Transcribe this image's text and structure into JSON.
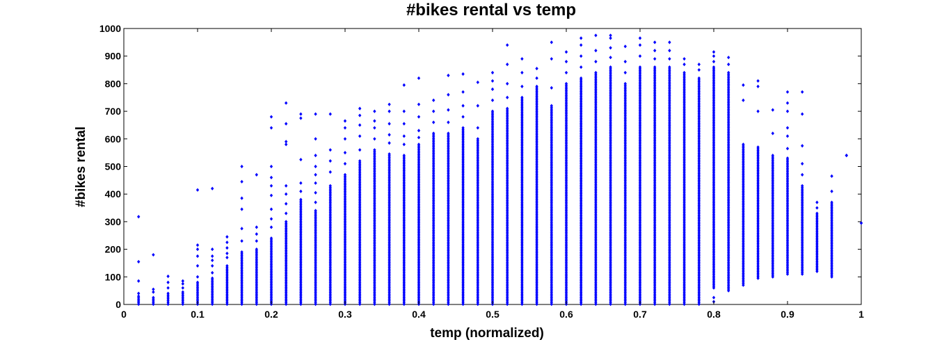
{
  "chart_data": {
    "type": "scatter",
    "title": "#bikes rental vs temp",
    "xlabel": "temp (normalized)",
    "ylabel": "#bikes rental",
    "xlim": [
      0,
      1
    ],
    "ylim": [
      0,
      1000
    ],
    "xticks": [
      "0",
      "0.1",
      "0.2",
      "0.3",
      "0.4",
      "0.5",
      "0.6",
      "0.7",
      "0.8",
      "0.9",
      "1"
    ],
    "yticks": [
      "0",
      "100",
      "200",
      "300",
      "400",
      "500",
      "600",
      "700",
      "800",
      "900",
      "1000"
    ],
    "grid": false,
    "legend": "none",
    "marker_color": "#0000ff",
    "marker": "diamond",
    "series": [
      {
        "columns": [
          {
            "x": 0.02,
            "dense_min": 1,
            "dense_max": 30,
            "outliers": [
              40,
              85,
              155,
              318
            ]
          },
          {
            "x": 0.04,
            "dense_min": 1,
            "dense_max": 25,
            "outliers": [
              45,
              55,
              180
            ]
          },
          {
            "x": 0.06,
            "dense_min": 1,
            "dense_max": 40,
            "outliers": [
              60,
              80,
              102
            ]
          },
          {
            "x": 0.08,
            "dense_min": 1,
            "dense_max": 45,
            "outliers": [
              60,
              75,
              85
            ]
          },
          {
            "x": 0.1,
            "dense_min": 1,
            "dense_max": 80,
            "outliers": [
              100,
              140,
              175,
              200,
              215,
              415
            ]
          },
          {
            "x": 0.12,
            "dense_min": 1,
            "dense_max": 95,
            "outliers": [
              115,
              140,
              160,
              175,
              200,
              420
            ]
          },
          {
            "x": 0.14,
            "dense_min": 1,
            "dense_max": 140,
            "outliers": [
              170,
              185,
              205,
              225,
              245
            ]
          },
          {
            "x": 0.16,
            "dense_min": 1,
            "dense_max": 190,
            "outliers": [
              230,
              275,
              345,
              385,
              445,
              500
            ]
          },
          {
            "x": 0.18,
            "dense_min": 1,
            "dense_max": 200,
            "outliers": [
              230,
              255,
              280,
              470
            ]
          },
          {
            "x": 0.2,
            "dense_min": 1,
            "dense_max": 240,
            "outliers": [
              280,
              310,
              345,
              395,
              430,
              460,
              500,
              640,
              680
            ]
          },
          {
            "x": 0.22,
            "dense_min": 1,
            "dense_max": 300,
            "outliers": [
              330,
              365,
              400,
              430,
              580,
              590,
              655,
              730
            ]
          },
          {
            "x": 0.24,
            "dense_min": 1,
            "dense_max": 380,
            "outliers": [
              410,
              440,
              525,
              675,
              690
            ]
          },
          {
            "x": 0.26,
            "dense_min": 1,
            "dense_max": 340,
            "outliers": [
              370,
              405,
              440,
              470,
              500,
              540,
              600,
              690
            ]
          },
          {
            "x": 0.28,
            "dense_min": 1,
            "dense_max": 430,
            "outliers": [
              480,
              520,
              560,
              690
            ]
          },
          {
            "x": 0.3,
            "dense_min": 1,
            "dense_max": 470,
            "outliers": [
              510,
              550,
              600,
              640,
              665
            ]
          },
          {
            "x": 0.32,
            "dense_min": 1,
            "dense_max": 520,
            "outliers": [
              560,
              610,
              650,
              685,
              710
            ]
          },
          {
            "x": 0.34,
            "dense_min": 1,
            "dense_max": 560,
            "outliers": [
              600,
              640,
              665,
              700
            ]
          },
          {
            "x": 0.36,
            "dense_min": 1,
            "dense_max": 545,
            "outliers": [
              585,
              615,
              655,
              700,
              725
            ]
          },
          {
            "x": 0.38,
            "dense_min": 1,
            "dense_max": 540,
            "outliers": [
              580,
              610,
              655,
              700,
              795
            ]
          },
          {
            "x": 0.4,
            "dense_min": 1,
            "dense_max": 580,
            "outliers": [
              605,
              630,
              680,
              725,
              820
            ]
          },
          {
            "x": 0.42,
            "dense_min": 1,
            "dense_max": 620,
            "outliers": [
              660,
              700,
              740
            ]
          },
          {
            "x": 0.44,
            "dense_min": 1,
            "dense_max": 620,
            "outliers": [
              660,
              705,
              760,
              830
            ]
          },
          {
            "x": 0.46,
            "dense_min": 1,
            "dense_max": 640,
            "outliers": [
              680,
              720,
              770,
              835
            ]
          },
          {
            "x": 0.48,
            "dense_min": 1,
            "dense_max": 600,
            "outliers": [
              640,
              720,
              805
            ]
          },
          {
            "x": 0.5,
            "dense_min": 1,
            "dense_max": 700,
            "outliers": [
              740,
              780,
              810,
              840
            ]
          },
          {
            "x": 0.52,
            "dense_min": 1,
            "dense_max": 710,
            "outliers": [
              750,
              800,
              870,
              940
            ]
          },
          {
            "x": 0.54,
            "dense_min": 1,
            "dense_max": 750,
            "outliers": [
              790,
              840,
              890
            ]
          },
          {
            "x": 0.56,
            "dense_min": 1,
            "dense_max": 790,
            "outliers": [
              820,
              855
            ]
          },
          {
            "x": 0.58,
            "dense_min": 1,
            "dense_max": 720,
            "outliers": [
              785,
              890,
              950
            ]
          },
          {
            "x": 0.6,
            "dense_min": 1,
            "dense_max": 800,
            "outliers": [
              840,
              880,
              915
            ]
          },
          {
            "x": 0.62,
            "dense_min": 1,
            "dense_max": 820,
            "outliers": [
              860,
              900,
              940,
              965
            ]
          },
          {
            "x": 0.64,
            "dense_min": 1,
            "dense_max": 840,
            "outliers": [
              880,
              920,
              975
            ]
          },
          {
            "x": 0.66,
            "dense_min": 1,
            "dense_max": 860,
            "outliers": [
              895,
              930,
              965,
              975
            ]
          },
          {
            "x": 0.68,
            "dense_min": 1,
            "dense_max": 800,
            "outliers": [
              840,
              880,
              935
            ]
          },
          {
            "x": 0.7,
            "dense_min": 1,
            "dense_max": 860,
            "outliers": [
              900,
              940,
              965
            ]
          },
          {
            "x": 0.72,
            "dense_min": 1,
            "dense_max": 860,
            "outliers": [
              890,
              920,
              950
            ]
          },
          {
            "x": 0.74,
            "dense_min": 1,
            "dense_max": 860,
            "outliers": [
              890,
              920,
              950
            ]
          },
          {
            "x": 0.76,
            "dense_min": 1,
            "dense_max": 840,
            "outliers": [
              870,
              890
            ]
          },
          {
            "x": 0.78,
            "dense_min": 1,
            "dense_max": 820,
            "outliers": [
              850,
              870
            ]
          },
          {
            "x": 0.8,
            "dense_min": 60,
            "dense_max": 860,
            "outliers": [
              10,
              25,
              880,
              900,
              915
            ]
          },
          {
            "x": 0.82,
            "dense_min": 50,
            "dense_max": 840,
            "outliers": [
              870,
              895
            ]
          },
          {
            "x": 0.84,
            "dense_min": 70,
            "dense_max": 580,
            "outliers": [
              740,
              795
            ]
          },
          {
            "x": 0.86,
            "dense_min": 95,
            "dense_max": 570,
            "outliers": [
              700,
              790,
              810
            ]
          },
          {
            "x": 0.88,
            "dense_min": 100,
            "dense_max": 540,
            "outliers": [
              620,
              705
            ]
          },
          {
            "x": 0.9,
            "dense_min": 110,
            "dense_max": 530,
            "outliers": [
              565,
              610,
              640,
              700,
              730,
              770
            ]
          },
          {
            "x": 0.92,
            "dense_min": 110,
            "dense_max": 430,
            "outliers": [
              470,
              510,
              575,
              690,
              770
            ]
          },
          {
            "x": 0.94,
            "dense_min": 120,
            "dense_max": 330,
            "outliers": [
              350,
              370
            ]
          },
          {
            "x": 0.96,
            "dense_min": 100,
            "dense_max": 370,
            "outliers": [
              410,
              465
            ]
          },
          {
            "x": 0.98,
            "dense_min": 540,
            "dense_max": 540,
            "outliers": []
          },
          {
            "x": 1.0,
            "dense_min": 295,
            "dense_max": 295,
            "outliers": []
          }
        ]
      }
    ]
  }
}
